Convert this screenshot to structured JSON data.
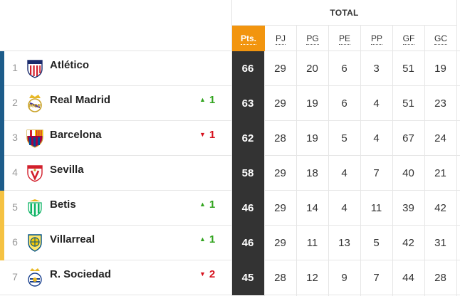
{
  "header": {
    "group_label": "TOTAL",
    "columns": [
      {
        "key": "pts",
        "label": "Pts."
      },
      {
        "key": "pj",
        "label": "PJ"
      },
      {
        "key": "pg",
        "label": "PG"
      },
      {
        "key": "pe",
        "label": "PE"
      },
      {
        "key": "pp",
        "label": "PP"
      },
      {
        "key": "gf",
        "label": "GF"
      },
      {
        "key": "gc",
        "label": "GC"
      }
    ]
  },
  "colors": {
    "champions_bar": "#1d5c8a",
    "europa_bar": "#f5c242",
    "points_header": "#f2950f",
    "points_cell": "#333333",
    "trend_up": "#32a41f",
    "trend_down": "#d6101d"
  },
  "rows": [
    {
      "position": "1",
      "team": "Atlético",
      "crest": "atletico-crest-icon",
      "zone": "champions",
      "trend": "",
      "trend_value": "",
      "pts": "66",
      "pj": "29",
      "pg": "20",
      "pe": "6",
      "pp": "3",
      "gf": "51",
      "gc": "19"
    },
    {
      "position": "2",
      "team": "Real Madrid",
      "crest": "real-madrid-crest-icon",
      "zone": "champions",
      "trend": "up",
      "trend_value": "1",
      "pts": "63",
      "pj": "29",
      "pg": "19",
      "pe": "6",
      "pp": "4",
      "gf": "51",
      "gc": "23"
    },
    {
      "position": "3",
      "team": "Barcelona",
      "crest": "barcelona-crest-icon",
      "zone": "champions",
      "trend": "down",
      "trend_value": "1",
      "pts": "62",
      "pj": "28",
      "pg": "19",
      "pe": "5",
      "pp": "4",
      "gf": "67",
      "gc": "24"
    },
    {
      "position": "4",
      "team": "Sevilla",
      "crest": "sevilla-crest-icon",
      "zone": "champions",
      "trend": "",
      "trend_value": "",
      "pts": "58",
      "pj": "29",
      "pg": "18",
      "pe": "4",
      "pp": "7",
      "gf": "40",
      "gc": "21"
    },
    {
      "position": "5",
      "team": "Betis",
      "crest": "betis-crest-icon",
      "zone": "europa",
      "trend": "up",
      "trend_value": "1",
      "pts": "46",
      "pj": "29",
      "pg": "14",
      "pe": "4",
      "pp": "11",
      "gf": "39",
      "gc": "42"
    },
    {
      "position": "6",
      "team": "Villarreal",
      "crest": "villarreal-crest-icon",
      "zone": "europa",
      "trend": "up",
      "trend_value": "1",
      "pts": "46",
      "pj": "29",
      "pg": "11",
      "pe": "13",
      "pp": "5",
      "gf": "42",
      "gc": "31"
    },
    {
      "position": "7",
      "team": "R. Sociedad",
      "crest": "real-sociedad-crest-icon",
      "zone": "none",
      "trend": "down",
      "trend_value": "2",
      "pts": "45",
      "pj": "28",
      "pg": "12",
      "pe": "9",
      "pp": "7",
      "gf": "44",
      "gc": "28"
    }
  ]
}
